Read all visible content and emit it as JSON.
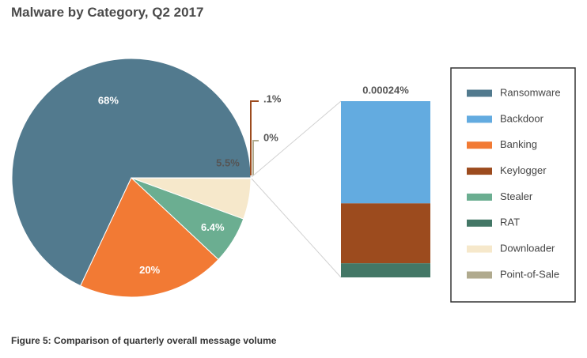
{
  "chart_data": {
    "type": "pie",
    "title": "Malware by Category, Q2 2017",
    "pie": [
      {
        "name": "Ransomware",
        "value": 68,
        "label": "68%",
        "color": "#527a8e"
      },
      {
        "name": "Banking",
        "value": 20,
        "label": "20%",
        "color": "#f27a34"
      },
      {
        "name": "Stealer",
        "value": 6.4,
        "label": "6.4%",
        "color": "#6bae91"
      },
      {
        "name": "Downloader",
        "value": 5.5,
        "label": "5.5%",
        "color": "#f6e8cb"
      },
      {
        "name": "Keylogger",
        "value": 0.1,
        "label": ".1%",
        "color": "#9c4b1e"
      },
      {
        "name": "Point-of-Sale",
        "value": 0,
        "label": "0%",
        "color": "#b0aa8e"
      }
    ],
    "breakdown": {
      "label": "0.00024%",
      "stack": [
        {
          "name": "Backdoor",
          "value": 0.58,
          "color": "#63abe0"
        },
        {
          "name": "Keylogger",
          "value": 0.34,
          "color": "#9c4b1e"
        },
        {
          "name": "RAT",
          "value": 0.08,
          "color": "#437766"
        }
      ]
    },
    "legend": {
      "position": "right",
      "entries": [
        {
          "name": "Ransomware",
          "color": "#527a8e"
        },
        {
          "name": "Backdoor",
          "color": "#63abe0"
        },
        {
          "name": "Banking",
          "color": "#f27a34"
        },
        {
          "name": "Keylogger",
          "color": "#9c4b1e"
        },
        {
          "name": "Stealer",
          "color": "#6bae91"
        },
        {
          "name": "RAT",
          "color": "#437766"
        },
        {
          "name": "Downloader",
          "color": "#f6e8cb"
        },
        {
          "name": "Point-of-Sale",
          "color": "#b0aa8e"
        }
      ]
    }
  },
  "caption": "Figure 5: Comparison of quarterly overall message volume"
}
